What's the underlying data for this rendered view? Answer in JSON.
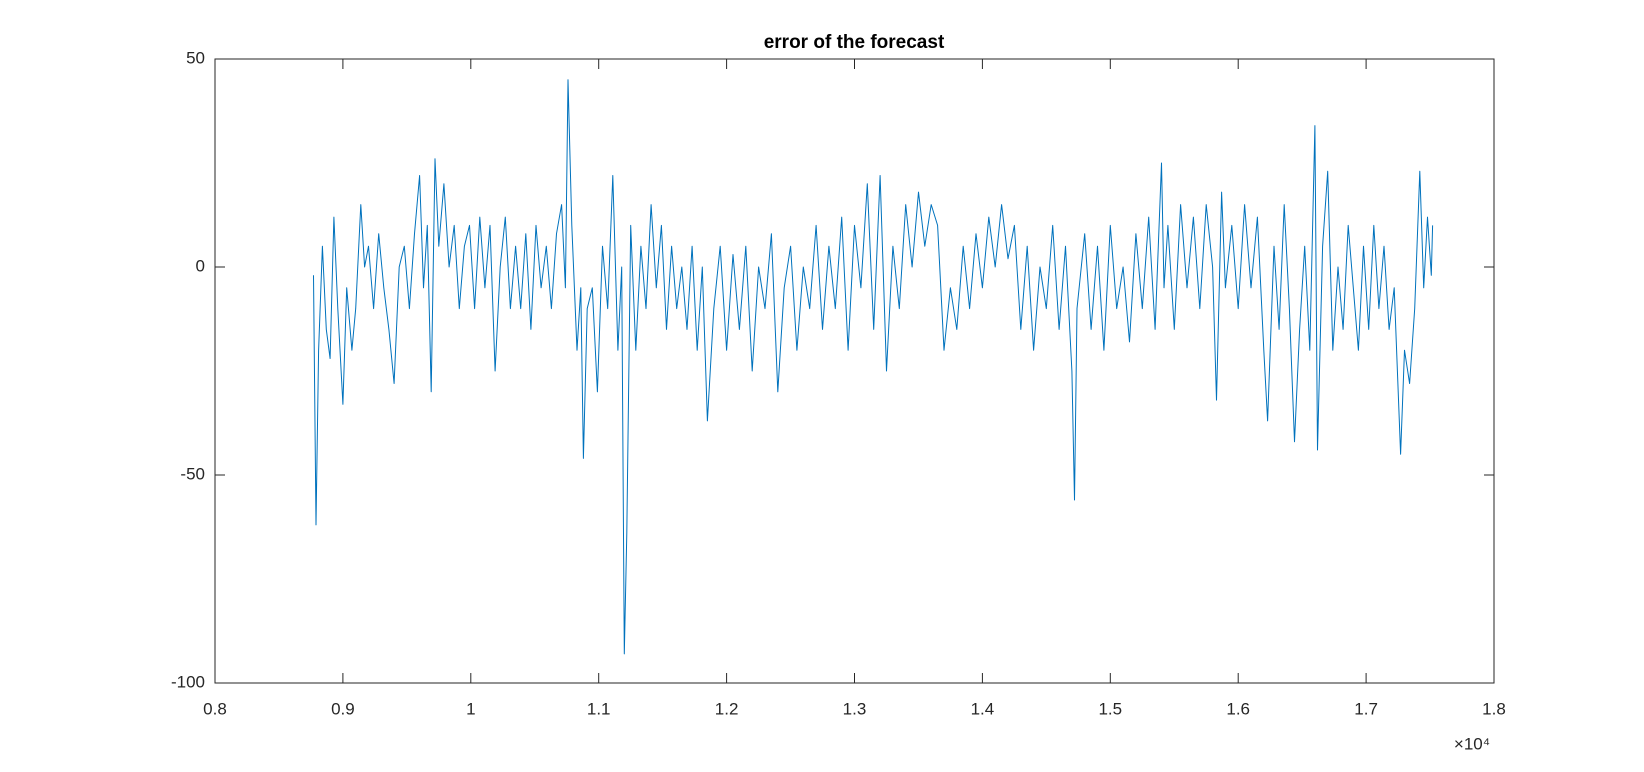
{
  "chart_data": {
    "type": "line",
    "title": "error of the forecast",
    "x_exponent_label": "×10⁴",
    "xlim": [
      8000,
      18000
    ],
    "xticks": [
      {
        "value": 8000,
        "label": "0.8"
      },
      {
        "value": 9000,
        "label": "0.9"
      },
      {
        "value": 10000,
        "label": "1"
      },
      {
        "value": 11000,
        "label": "1.1"
      },
      {
        "value": 12000,
        "label": "1.2"
      },
      {
        "value": 13000,
        "label": "1.3"
      },
      {
        "value": 14000,
        "label": "1.4"
      },
      {
        "value": 15000,
        "label": "1.5"
      },
      {
        "value": 16000,
        "label": "1.6"
      },
      {
        "value": 17000,
        "label": "1.7"
      },
      {
        "value": 18000,
        "label": "1.8"
      }
    ],
    "ylim": [
      -100,
      50
    ],
    "yticks": [
      -100,
      -50,
      0,
      50
    ],
    "grid": false,
    "series": [
      {
        "color": "#0072bd",
        "x": [
          8770,
          8790,
          8810,
          8840,
          8870,
          8900,
          8930,
          8960,
          9000,
          9030,
          9070,
          9100,
          9140,
          9170,
          9200,
          9240,
          9280,
          9320,
          9360,
          9400,
          9440,
          9480,
          9520,
          9560,
          9600,
          9630,
          9660,
          9690,
          9720,
          9750,
          9790,
          9830,
          9870,
          9910,
          9950,
          9990,
          10030,
          10070,
          10110,
          10150,
          10190,
          10230,
          10270,
          10310,
          10350,
          10390,
          10430,
          10470,
          10510,
          10550,
          10590,
          10630,
          10670,
          10710,
          10740,
          10760,
          10790,
          10830,
          10860,
          10880,
          10910,
          10950,
          10990,
          11030,
          11070,
          11110,
          11150,
          11180,
          11200,
          11220,
          11250,
          11290,
          11330,
          11370,
          11410,
          11450,
          11490,
          11530,
          11570,
          11610,
          11650,
          11690,
          11730,
          11770,
          11810,
          11850,
          11900,
          11950,
          12000,
          12050,
          12100,
          12150,
          12200,
          12250,
          12300,
          12350,
          12400,
          12450,
          12500,
          12550,
          12600,
          12650,
          12700,
          12750,
          12800,
          12850,
          12900,
          12950,
          13000,
          13050,
          13100,
          13150,
          13200,
          13250,
          13300,
          13350,
          13400,
          13450,
          13500,
          13550,
          13600,
          13650,
          13700,
          13750,
          13800,
          13850,
          13900,
          13950,
          14000,
          14050,
          14100,
          14150,
          14200,
          14250,
          14300,
          14350,
          14400,
          14450,
          14500,
          14550,
          14600,
          14650,
          14700,
          14720,
          14740,
          14800,
          14850,
          14900,
          14950,
          15000,
          15050,
          15100,
          15150,
          15200,
          15250,
          15300,
          15350,
          15400,
          15420,
          15450,
          15500,
          15550,
          15600,
          15650,
          15700,
          15750,
          15800,
          15830,
          15870,
          15900,
          15950,
          16000,
          16050,
          16100,
          16150,
          16200,
          16230,
          16280,
          16320,
          16360,
          16400,
          16440,
          16480,
          16520,
          16560,
          16600,
          16620,
          16660,
          16700,
          16740,
          16780,
          16820,
          16860,
          16900,
          16940,
          16980,
          17020,
          17060,
          17100,
          17140,
          17180,
          17220,
          17270,
          17300,
          17340,
          17380,
          17420,
          17450,
          17480,
          17510,
          17520
        ],
        "values": [
          -2,
          -62,
          -20,
          5,
          -15,
          -22,
          12,
          -10,
          -33,
          -5,
          -20,
          -10,
          15,
          0,
          5,
          -10,
          8,
          -5,
          -15,
          -28,
          0,
          5,
          -10,
          8,
          22,
          -5,
          10,
          -30,
          26,
          5,
          20,
          0,
          10,
          -10,
          5,
          10,
          -10,
          12,
          -5,
          10,
          -25,
          0,
          12,
          -10,
          5,
          -10,
          8,
          -15,
          10,
          -5,
          5,
          -10,
          8,
          15,
          -5,
          45,
          10,
          -20,
          -5,
          -46,
          -10,
          -5,
          -30,
          5,
          -10,
          22,
          -20,
          0,
          -93,
          -64,
          10,
          -20,
          5,
          -10,
          15,
          -5,
          10,
          -15,
          5,
          -10,
          0,
          -15,
          5,
          -20,
          0,
          -37,
          -10,
          5,
          -20,
          3,
          -15,
          5,
          -25,
          0,
          -10,
          8,
          -30,
          -5,
          5,
          -20,
          0,
          -10,
          10,
          -15,
          5,
          -10,
          12,
          -20,
          10,
          -5,
          20,
          -15,
          22,
          -25,
          5,
          -10,
          15,
          0,
          18,
          5,
          15,
          10,
          -20,
          -5,
          -15,
          5,
          -10,
          8,
          -5,
          12,
          0,
          15,
          2,
          10,
          -15,
          5,
          -20,
          0,
          -10,
          10,
          -15,
          5,
          -25,
          -56,
          -10,
          8,
          -15,
          5,
          -20,
          10,
          -10,
          0,
          -18,
          8,
          -10,
          12,
          -15,
          25,
          -5,
          10,
          -15,
          15,
          -5,
          12,
          -10,
          15,
          0,
          -32,
          18,
          -5,
          10,
          -10,
          15,
          -5,
          12,
          -20,
          -37,
          5,
          -15,
          15,
          -10,
          -42,
          -15,
          5,
          -20,
          34,
          -44,
          5,
          23,
          -20,
          0,
          -15,
          10,
          -5,
          -20,
          5,
          -15,
          10,
          -10,
          5,
          -15,
          -5,
          -45,
          -20,
          -28,
          -10,
          23,
          -5,
          12,
          -2,
          10
        ]
      }
    ]
  }
}
